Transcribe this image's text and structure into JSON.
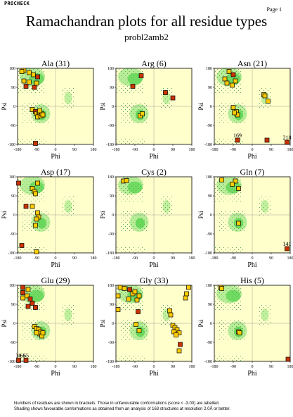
{
  "header": {
    "program": "PROCHECK",
    "page": "Page 1",
    "title": "Ramachandran plots for all residue types",
    "subtitle": "probl2amb2"
  },
  "footnote": {
    "line1": "Numbers of residues are shown in brackets. Those in unfavourable conformations (score < -3.00) are labelled.",
    "line2": "Shading shows favourable conformations as obtained from an analysis of 163 structures at resolution 2.0Å or better."
  },
  "colors": {
    "background": "#ffffcc",
    "favourable": "#33cc33",
    "allowed_dots": "#66aa66",
    "point_normal": "#ffcc00",
    "point_unfavourable": "#cc3300",
    "point_outline": "#000000"
  },
  "chart_data": [
    {
      "type": "scatter",
      "title": "Ala (31)",
      "xlabel": "Phi",
      "ylabel": "Psi",
      "xlim": [
        -180,
        180
      ],
      "ylim": [
        -180,
        180
      ],
      "xticks": [
        "-180",
        "-90",
        "0",
        "90",
        "180"
      ],
      "yticks": [
        "180",
        "90",
        "0",
        "-90",
        "-180"
      ],
      "points": [
        {
          "phi": -150,
          "psi": 170,
          "unfav": false
        },
        {
          "phi": -160,
          "psi": 165,
          "unfav": false
        },
        {
          "phi": -125,
          "psi": 160,
          "unfav": false
        },
        {
          "phi": -105,
          "psi": 150,
          "unfav": false
        },
        {
          "phi": -85,
          "psi": 140,
          "unfav": true
        },
        {
          "phi": -150,
          "psi": 120,
          "unfav": false
        },
        {
          "phi": -140,
          "psi": 95,
          "unfav": true
        },
        {
          "phi": -100,
          "psi": 90,
          "unfav": true
        },
        {
          "phi": -125,
          "psi": 115,
          "unfav": false
        },
        {
          "phi": -90,
          "psi": 110,
          "unfav": false
        },
        {
          "phi": -110,
          "psi": -15,
          "unfav": false
        },
        {
          "phi": -95,
          "psi": -25,
          "unfav": true
        },
        {
          "phi": -90,
          "psi": -35,
          "unfav": false
        },
        {
          "phi": -80,
          "psi": -30,
          "unfav": false
        },
        {
          "phi": -75,
          "psi": -40,
          "unfav": false
        },
        {
          "phi": -85,
          "psi": -50,
          "unfav": false
        },
        {
          "phi": -70,
          "psi": -45,
          "unfav": false
        },
        {
          "phi": -65,
          "psi": -35,
          "unfav": false
        },
        {
          "phi": -75,
          "psi": -20,
          "unfav": false
        },
        {
          "phi": -60,
          "psi": -40,
          "unfav": false
        },
        {
          "phi": -95,
          "psi": -175,
          "unfav": true
        }
      ],
      "labels": []
    },
    {
      "type": "scatter",
      "title": "Arg (6)",
      "xlabel": "Phi",
      "ylabel": "Psi",
      "xlim": [
        -180,
        180
      ],
      "ylim": [
        -180,
        180
      ],
      "xticks": [
        "-180",
        "-90",
        "0",
        "90",
        "180"
      ],
      "yticks": [
        "180",
        "90",
        "0",
        "-90",
        "-180"
      ],
      "points": [
        {
          "phi": -60,
          "psi": 145,
          "unfav": true
        },
        {
          "phi": -100,
          "psi": 95,
          "unfav": true
        },
        {
          "phi": 55,
          "psi": 65,
          "unfav": true
        },
        {
          "phi": 90,
          "psi": 40,
          "unfav": true
        },
        {
          "phi": -65,
          "psi": -45,
          "unfav": false
        },
        {
          "phi": -55,
          "psi": -35,
          "unfav": false
        }
      ],
      "labels": []
    },
    {
      "type": "scatter",
      "title": "Asn (21)",
      "xlabel": "Phi",
      "ylabel": "Psi",
      "xlim": [
        -180,
        180
      ],
      "ylim": [
        -180,
        180
      ],
      "xticks": [
        "-180",
        "-90",
        "0",
        "90",
        "180"
      ],
      "yticks": [
        "180",
        "90",
        "0",
        "-90",
        "-180"
      ],
      "points": [
        {
          "phi": -110,
          "psi": 165,
          "unfav": false
        },
        {
          "phi": -90,
          "psi": 150,
          "unfav": true
        },
        {
          "phi": -130,
          "psi": 130,
          "unfav": false
        },
        {
          "phi": -120,
          "psi": 110,
          "unfav": false
        },
        {
          "phi": -80,
          "psi": 120,
          "unfav": false
        },
        {
          "phi": -95,
          "psi": 100,
          "unfav": false
        },
        {
          "phi": 55,
          "psi": 55,
          "unfav": false
        },
        {
          "phi": 60,
          "psi": 50,
          "unfav": false
        },
        {
          "phi": 75,
          "psi": 25,
          "unfav": false
        },
        {
          "phi": -90,
          "psi": -5,
          "unfav": false
        },
        {
          "phi": -75,
          "psi": -25,
          "unfav": false
        },
        {
          "phi": -70,
          "psi": -40,
          "unfav": false
        },
        {
          "phi": -85,
          "psi": -30,
          "unfav": false
        },
        {
          "phi": -70,
          "psi": -160,
          "unfav": true
        },
        {
          "phi": 70,
          "psi": -160,
          "unfav": true
        },
        {
          "phi": 165,
          "psi": -170,
          "unfav": true
        }
      ],
      "labels": [
        {
          "text": "169",
          "phi": -70,
          "psi": -160
        },
        {
          "text": "218",
          "phi": 165,
          "psi": -170
        }
      ]
    },
    {
      "type": "scatter",
      "title": "Asp (17)",
      "xlabel": "Phi",
      "ylabel": "Psi",
      "xlim": [
        -180,
        180
      ],
      "ylim": [
        -180,
        180
      ],
      "xticks": [
        "-180",
        "-90",
        "0",
        "90",
        "180"
      ],
      "yticks": [
        "180",
        "90",
        "0",
        "-90",
        "-180"
      ],
      "points": [
        {
          "phi": -175,
          "psi": 150,
          "unfav": true
        },
        {
          "phi": -85,
          "psi": 150,
          "unfav": false
        },
        {
          "phi": -110,
          "psi": 125,
          "unfav": false
        },
        {
          "phi": -100,
          "psi": 110,
          "unfav": false
        },
        {
          "phi": -95,
          "psi": 100,
          "unfav": false
        },
        {
          "phi": -140,
          "psi": 40,
          "unfav": true
        },
        {
          "phi": -110,
          "psi": 40,
          "unfav": false
        },
        {
          "phi": -85,
          "psi": 10,
          "unfav": false
        },
        {
          "phi": -80,
          "psi": -10,
          "unfav": false
        },
        {
          "phi": -90,
          "psi": -20,
          "unfav": false
        },
        {
          "phi": -95,
          "psi": -50,
          "unfav": false
        },
        {
          "phi": -160,
          "psi": -145,
          "unfav": true
        },
        {
          "phi": -90,
          "psi": -175,
          "unfav": false
        }
      ],
      "labels": []
    },
    {
      "type": "scatter",
      "title": "Cys (2)",
      "xlabel": "Phi",
      "ylabel": "Psi",
      "xlim": [
        -180,
        180
      ],
      "ylim": [
        -180,
        180
      ],
      "xticks": [
        "-180",
        "-90",
        "0",
        "90",
        "180"
      ],
      "yticks": [
        "180",
        "90",
        "0",
        "-90",
        "-180"
      ],
      "points": [
        {
          "phi": -145,
          "psi": 160,
          "unfav": false
        },
        {
          "phi": -130,
          "psi": 162,
          "unfav": false
        }
      ],
      "labels": []
    },
    {
      "type": "scatter",
      "title": "Gln (7)",
      "xlabel": "Phi",
      "ylabel": "Psi",
      "xlim": [
        -180,
        180
      ],
      "ylim": [
        -180,
        180
      ],
      "xticks": [
        "-180",
        "-90",
        "0",
        "90",
        "180"
      ],
      "yticks": [
        "180",
        "90",
        "0",
        "-90",
        "-180"
      ],
      "points": [
        {
          "phi": -145,
          "psi": 165,
          "unfav": false
        },
        {
          "phi": -80,
          "psi": 160,
          "unfav": false
        },
        {
          "phi": -95,
          "psi": 145,
          "unfav": false
        },
        {
          "phi": -65,
          "psi": 125,
          "unfav": false
        },
        {
          "phi": -65,
          "psi": -40,
          "unfav": false
        },
        {
          "phi": 165,
          "psi": -160,
          "unfav": true
        }
      ],
      "labels": [
        {
          "text": "141",
          "phi": 165,
          "psi": -160
        }
      ]
    },
    {
      "type": "scatter",
      "title": "Glu (29)",
      "xlabel": "Phi",
      "ylabel": "Psi",
      "xlim": [
        -180,
        180
      ],
      "ylim": [
        -180,
        180
      ],
      "xticks": [
        "-180",
        "-90",
        "0",
        "90",
        "180"
      ],
      "yticks": [
        "180",
        "90",
        "0",
        "-90",
        "-180"
      ],
      "points": [
        {
          "phi": -155,
          "psi": 170,
          "unfav": true
        },
        {
          "phi": -130,
          "psi": 160,
          "unfav": false
        },
        {
          "phi": -155,
          "psi": 145,
          "unfav": true
        },
        {
          "phi": -135,
          "psi": 130,
          "unfav": false
        },
        {
          "phi": -155,
          "psi": 120,
          "unfav": false
        },
        {
          "phi": -120,
          "psi": 115,
          "unfav": true
        },
        {
          "phi": -110,
          "psi": 95,
          "unfav": true
        },
        {
          "phi": -130,
          "psi": 80,
          "unfav": true
        },
        {
          "phi": -95,
          "psi": 75,
          "unfav": true
        },
        {
          "phi": -100,
          "psi": -15,
          "unfav": false
        },
        {
          "phi": -90,
          "psi": -25,
          "unfav": false
        },
        {
          "phi": -80,
          "psi": -30,
          "unfav": false
        },
        {
          "phi": -70,
          "psi": -40,
          "unfav": false
        },
        {
          "phi": -75,
          "psi": -50,
          "unfav": false
        },
        {
          "phi": -65,
          "psi": -60,
          "unfav": false
        },
        {
          "phi": -90,
          "psi": -45,
          "unfav": false
        },
        {
          "phi": -60,
          "psi": -45,
          "unfav": false
        },
        {
          "phi": -175,
          "psi": -175,
          "unfav": true
        },
        {
          "phi": -140,
          "psi": -175,
          "unfav": true
        }
      ],
      "labels": [
        {
          "text": "30",
          "phi": -175,
          "psi": -175
        },
        {
          "text": "65",
          "phi": -155,
          "psi": -175
        },
        {
          "text": "65",
          "phi": -140,
          "psi": -175
        }
      ]
    },
    {
      "type": "scatter",
      "title": "Gly (33)",
      "xlabel": "Phi",
      "ylabel": "Psi",
      "xlim": [
        -180,
        180
      ],
      "ylim": [
        -180,
        180
      ],
      "xticks": [
        "-180",
        "-90",
        "0",
        "90",
        "180"
      ],
      "yticks": [
        "180",
        "90",
        "0",
        "-90",
        "-180"
      ],
      "points": [
        {
          "phi": -160,
          "psi": 170,
          "unfav": false
        },
        {
          "phi": -140,
          "psi": 165,
          "unfav": false
        },
        {
          "phi": -115,
          "psi": 160,
          "unfav": true
        },
        {
          "phi": -170,
          "psi": 130,
          "unfav": false
        },
        {
          "phi": -100,
          "psi": 140,
          "unfav": false
        },
        {
          "phi": -90,
          "psi": 150,
          "unfav": false
        },
        {
          "phi": -120,
          "psi": 115,
          "unfav": false
        },
        {
          "phi": -80,
          "psi": 110,
          "unfav": false
        },
        {
          "phi": -70,
          "psi": 130,
          "unfav": false
        },
        {
          "phi": -170,
          "psi": 65,
          "unfav": false
        },
        {
          "phi": -75,
          "psi": 55,
          "unfav": true
        },
        {
          "phi": 75,
          "psi": 60,
          "unfav": false
        },
        {
          "phi": 80,
          "psi": 40,
          "unfav": false
        },
        {
          "phi": -85,
          "psi": -5,
          "unfav": false
        },
        {
          "phi": -70,
          "psi": -35,
          "unfav": false
        },
        {
          "phi": 90,
          "psi": -10,
          "unfav": false
        },
        {
          "phi": 100,
          "psi": -20,
          "unfav": false
        },
        {
          "phi": 110,
          "psi": -30,
          "unfav": false
        },
        {
          "phi": 95,
          "psi": -40,
          "unfav": false
        },
        {
          "phi": 120,
          "psi": -45,
          "unfav": false
        },
        {
          "phi": 105,
          "psi": -55,
          "unfav": false
        },
        {
          "phi": 125,
          "psi": -100,
          "unfav": true
        },
        {
          "phi": 120,
          "psi": -130,
          "unfav": false
        },
        {
          "phi": 150,
          "psi": 120,
          "unfav": false
        },
        {
          "phi": 155,
          "psi": 140,
          "unfav": false
        },
        {
          "phi": 165,
          "psi": 170,
          "unfav": false
        }
      ],
      "labels": []
    },
    {
      "type": "scatter",
      "title": "His (5)",
      "xlabel": "Phi",
      "ylabel": "Psi",
      "xlim": [
        -180,
        180
      ],
      "ylim": [
        -180,
        180
      ],
      "xticks": [
        "-180",
        "-90",
        "0",
        "90",
        "180"
      ],
      "yticks": [
        "180",
        "90",
        "0",
        "-90",
        "-180"
      ],
      "points": [
        {
          "phi": -150,
          "psi": 170,
          "unfav": false
        },
        {
          "phi": -145,
          "psi": 165,
          "unfav": false
        },
        {
          "phi": -65,
          "psi": -40,
          "unfav": false
        },
        {
          "phi": -60,
          "psi": -45,
          "unfav": false
        },
        {
          "phi": 170,
          "psi": -170,
          "unfav": true
        }
      ],
      "labels": []
    }
  ]
}
